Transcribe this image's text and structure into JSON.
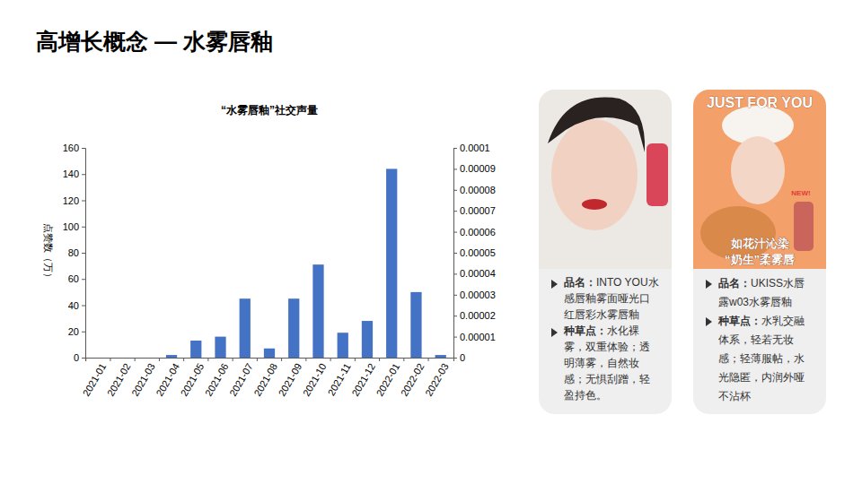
{
  "page_title": "高增长概念 — 水雾唇釉",
  "chart_data": {
    "type": "bar",
    "title": "“水雾唇釉”社交声量",
    "y_label": "点赞数（万）",
    "categories": [
      "2021-01",
      "2021-02",
      "2021-03",
      "2021-04",
      "2021-05",
      "2021-06",
      "2021-07",
      "2021-08",
      "2021-09",
      "2021-10",
      "2021-11",
      "2021-12",
      "2022-01",
      "2022-02",
      "2022-03"
    ],
    "values": [
      0,
      0,
      0,
      2,
      13,
      16,
      45,
      7,
      45,
      71,
      19,
      28,
      144,
      50,
      2
    ],
    "color": "#4472c4",
    "ylim": [
      0,
      160
    ],
    "yticks": [
      0,
      20,
      40,
      60,
      80,
      100,
      120,
      140,
      160
    ],
    "y2lim": [
      0,
      0.0001
    ],
    "y2ticks": [
      0,
      1e-05,
      2e-05,
      3e-05,
      4e-05,
      5e-05,
      6e-05,
      7e-05,
      8e-05,
      9e-05,
      0.0001
    ],
    "grid": false
  },
  "cards": [
    {
      "name_label": "品名：",
      "name": "INTO YOU水感唇釉雾面哑光口红唇彩水雾唇釉",
      "point_label": "种草点：",
      "points": "水化裸雾，双重体验；透明薄雾，自然妆感；无惧刮蹭，轻盈持色。",
      "image_texts": []
    },
    {
      "name_label": "品名：",
      "name": "UKISS水唇露w03水雾唇釉",
      "point_label": "种草点：",
      "points": "水乳交融体系，轻若无妆感；轻薄服帖，水光隐匿，内润外哑不沾杯",
      "image_texts": [
        "JUST FOR YOU",
        "NEW!",
        "如花汁沁染",
        "“奶生”柔雾唇"
      ]
    }
  ]
}
